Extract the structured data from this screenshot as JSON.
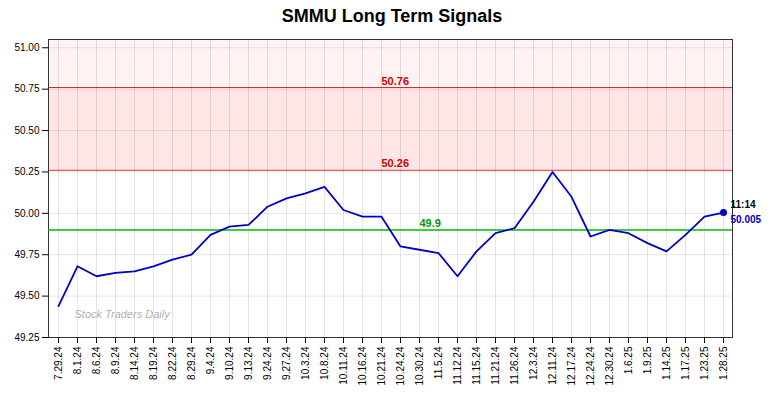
{
  "chart_data": {
    "type": "line",
    "title": "SMMU Long Term Signals",
    "categories": [
      "7.29.24",
      "8.1.24",
      "8.6.24",
      "8.9.24",
      "8.14.24",
      "8.19.24",
      "8.22.24",
      "8.29.24",
      "9.4.24",
      "9.10.24",
      "9.13.24",
      "9.24.24",
      "9.27.24",
      "10.3.24",
      "10.8.24",
      "10.11.24",
      "10.16.24",
      "10.21.24",
      "10.24.24",
      "10.30.24",
      "11.5.24",
      "11.12.24",
      "11.15.24",
      "11.21.24",
      "11.26.24",
      "12.3.24",
      "12.11.24",
      "12.17.24",
      "12.24.24",
      "12.30.24",
      "1.6.25",
      "1.9.25",
      "1.14.25",
      "1.17.25",
      "1.23.25",
      "1.28.25"
    ],
    "values": [
      49.44,
      49.68,
      49.62,
      49.64,
      49.65,
      49.68,
      49.72,
      49.75,
      49.87,
      49.92,
      49.93,
      50.04,
      50.09,
      50.12,
      50.16,
      50.02,
      49.98,
      49.98,
      49.8,
      49.78,
      49.76,
      49.62,
      49.77,
      49.88,
      49.91,
      50.07,
      50.25,
      50.1,
      49.86,
      49.9,
      49.88,
      49.82,
      49.77,
      49.87,
      49.98,
      50.005
    ],
    "color": "#0000cc",
    "ylim": [
      49.25,
      51.05
    ],
    "yticks": [
      49.25,
      {
        "value": 49.5,
        "label": "49.50"
      },
      49.75,
      {
        "value": 50.0,
        "label": "50.00"
      },
      50.25,
      {
        "value": 50.5,
        "label": "50.50"
      },
      50.75,
      {
        "value": 51.0,
        "label": "51.00"
      }
    ],
    "grid": true,
    "reference_lines": [
      {
        "y": 49.9,
        "color": "#00bb00"
      },
      {
        "y": 50.26,
        "color": "#cc0000"
      },
      {
        "y": 50.76,
        "color": "#cc0000"
      }
    ],
    "bands": [
      {
        "from": 50.26,
        "to": 50.76,
        "color": "red"
      },
      {
        "from": 50.76,
        "color": "red"
      }
    ],
    "annotations": [
      {
        "text": "50.76",
        "x": "10.21.24",
        "y": 50.76,
        "color": "#cc0000"
      },
      {
        "text": "50.26",
        "x": "10.21.24",
        "y": 50.26,
        "color": "#cc0000"
      },
      {
        "text": "49.9",
        "x": "10.30.24",
        "y": 49.9,
        "color": "#009900"
      }
    ],
    "last_point_labels": [
      {
        "text": "11:14",
        "color": "#000000"
      },
      {
        "text": "50.005",
        "color": "#0000cc"
      }
    ],
    "watermark": "Stock Traders Daily"
  }
}
